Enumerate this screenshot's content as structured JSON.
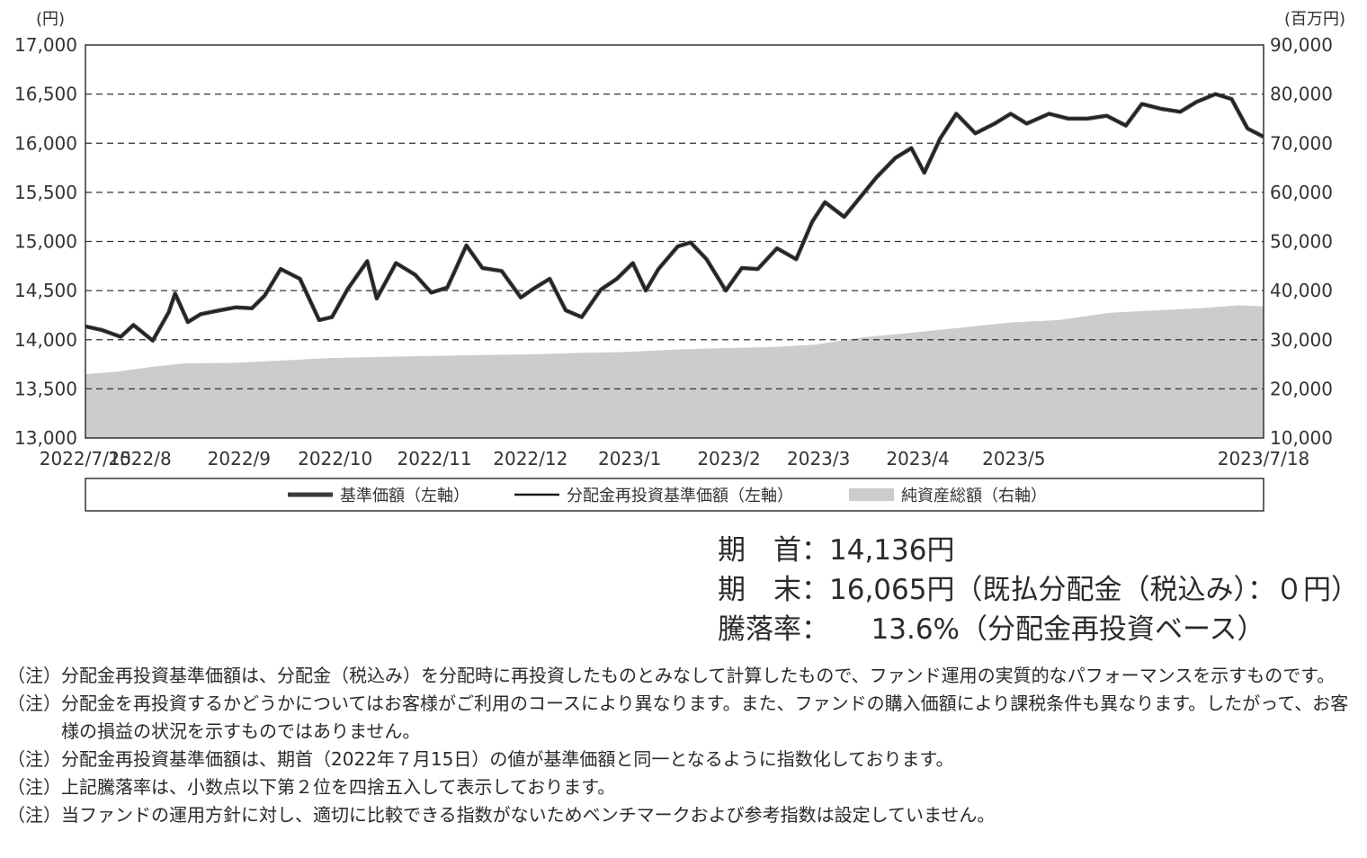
{
  "chart_data": {
    "type": "line",
    "left_axis": {
      "unit_label": "(円)",
      "ylim": [
        13000,
        17000
      ],
      "ticks": [
        "13,000",
        "13,500",
        "14,000",
        "14,500",
        "15,000",
        "15,500",
        "16,000",
        "16,500",
        "17,000"
      ]
    },
    "right_axis": {
      "unit_label": "(百万円)",
      "ylim": [
        10000,
        90000
      ],
      "ticks": [
        "10,000",
        "20,000",
        "30,000",
        "40,000",
        "50,000",
        "60,000",
        "70,000",
        "80,000",
        "90,000"
      ]
    },
    "x_range": [
      "2022-07-15",
      "2023-07-18"
    ],
    "x_ticks": [
      {
        "date": "2022-07-15",
        "label": "2022/7/15"
      },
      {
        "date": "2022-08-01",
        "label": "2022/8"
      },
      {
        "date": "2022-09-01",
        "label": "2022/9"
      },
      {
        "date": "2022-10-01",
        "label": "2022/10"
      },
      {
        "date": "2022-11-01",
        "label": "2022/11"
      },
      {
        "date": "2022-12-01",
        "label": "2022/12"
      },
      {
        "date": "2023-01-01",
        "label": "2023/1"
      },
      {
        "date": "2023-02-01",
        "label": "2023/2"
      },
      {
        "date": "2023-03-01",
        "label": "2023/3"
      },
      {
        "date": "2023-04-01",
        "label": "2023/4"
      },
      {
        "date": "2023-05-01",
        "label": "2023/5"
      },
      {
        "date": "2023-07-18",
        "label": "2023/7/18"
      }
    ],
    "gridlines": "dashed",
    "legend_placement": "bottom",
    "series": [
      {
        "name": "基準価額（左軸）",
        "axis": "left",
        "color": "#3a3a3a",
        "x": [
          "2022-07-15",
          "2022-07-20",
          "2022-07-26",
          "2022-07-30",
          "2022-08-05",
          "2022-08-10",
          "2022-08-12",
          "2022-08-16",
          "2022-08-20",
          "2022-08-26",
          "2022-08-31",
          "2022-09-05",
          "2022-09-09",
          "2022-09-14",
          "2022-09-20",
          "2022-09-26",
          "2022-09-30",
          "2022-10-05",
          "2022-10-11",
          "2022-10-14",
          "2022-10-20",
          "2022-10-26",
          "2022-10-31",
          "2022-11-05",
          "2022-11-11",
          "2022-11-16",
          "2022-11-22",
          "2022-11-28",
          "2022-12-02",
          "2022-12-07",
          "2022-12-12",
          "2022-12-17",
          "2022-12-23",
          "2022-12-28",
          "2023-01-02",
          "2023-01-06",
          "2023-01-10",
          "2023-01-16",
          "2023-01-20",
          "2023-01-25",
          "2023-01-31",
          "2023-02-05",
          "2023-02-10",
          "2023-02-16",
          "2023-02-22",
          "2023-02-27",
          "2023-03-03",
          "2023-03-09",
          "2023-03-14",
          "2023-03-19",
          "2023-03-25",
          "2023-03-30",
          "2023-04-03",
          "2023-04-08",
          "2023-04-13",
          "2023-04-19",
          "2023-04-25",
          "2023-04-30",
          "2023-05-05",
          "2023-05-12",
          "2023-05-18",
          "2023-05-24",
          "2023-05-30",
          "2023-06-05",
          "2023-06-10",
          "2023-06-16",
          "2023-06-22",
          "2023-06-27",
          "2023-07-03",
          "2023-07-08",
          "2023-07-13",
          "2023-07-18"
        ],
        "values": [
          14136,
          14100,
          14030,
          14150,
          13990,
          14280,
          14470,
          14180,
          14260,
          14300,
          14330,
          14320,
          14450,
          14720,
          14620,
          14200,
          14230,
          14520,
          14800,
          14420,
          14780,
          14660,
          14480,
          14530,
          14960,
          14730,
          14700,
          14430,
          14520,
          14620,
          14300,
          14230,
          14510,
          14620,
          14780,
          14500,
          14720,
          14950,
          14990,
          14820,
          14500,
          14730,
          14720,
          14930,
          14820,
          15200,
          15400,
          15250,
          15450,
          15650,
          15850,
          15950,
          15700,
          16050,
          16300,
          16100,
          16200,
          16300,
          16200,
          16300,
          16250,
          16250,
          16280,
          16180,
          16400,
          16350,
          16320,
          16420,
          16500,
          16450,
          16150,
          16065
        ]
      },
      {
        "name": "分配金再投資基準価額（左軸）",
        "axis": "left",
        "color": "#1a1a1a",
        "same_as": "基準価額（左軸）"
      },
      {
        "name": "純資産総額（右軸）",
        "axis": "right",
        "color": "#cccccc",
        "x": [
          "2022-07-15",
          "2022-07-25",
          "2022-08-05",
          "2022-08-15",
          "2022-08-31",
          "2022-09-15",
          "2022-09-30",
          "2022-10-15",
          "2022-10-31",
          "2022-11-15",
          "2022-11-30",
          "2022-12-15",
          "2022-12-31",
          "2023-01-15",
          "2023-01-31",
          "2023-02-15",
          "2023-02-28",
          "2023-03-15",
          "2023-03-31",
          "2023-04-15",
          "2023-04-30",
          "2023-05-15",
          "2023-05-31",
          "2023-06-15",
          "2023-06-30",
          "2023-07-10",
          "2023-07-18"
        ],
        "values": [
          23000,
          23500,
          24500,
          25200,
          25300,
          25800,
          26300,
          26500,
          26700,
          26900,
          27000,
          27300,
          27500,
          28000,
          28300,
          28500,
          29000,
          30500,
          31500,
          32500,
          33500,
          34000,
          35500,
          36000,
          36500,
          37000,
          36800
        ]
      }
    ]
  },
  "summary": {
    "start_label": "期　首：",
    "start_value": "14,136円",
    "end_label": "期　末：",
    "end_value": "16,065円",
    "end_note": "（既払分配金（税込み）：０円）",
    "rate_label": "騰落率：",
    "rate_value": "13.6%",
    "rate_note": "（分配金再投資ベース）"
  },
  "notes": [
    {
      "mark": "（注）",
      "text": "分配金再投資基準価額は、分配金（税込み）を分配時に再投資したものとみなして計算したもので、ファンド運用の実質的なパフォーマンスを示すものです。"
    },
    {
      "mark": "（注）",
      "text": "分配金を再投資するかどうかについてはお客様がご利用のコースにより異なります。また、ファンドの購入価額により課税条件も異なります。したがって、お客様の損益の状況を示すものではありません。"
    },
    {
      "mark": "（注）",
      "text": "分配金再投資基準価額は、期首（2022年７月15日）の値が基準価額と同一となるように指数化しております。"
    },
    {
      "mark": "（注）",
      "text": "上記騰落率は、小数点以下第２位を四捨五入して表示しております。"
    },
    {
      "mark": "（注）",
      "text": "当ファンドの運用方針に対し、適切に比較できる指数がないためベンチマークおよび参考指数は設定していません。"
    }
  ]
}
